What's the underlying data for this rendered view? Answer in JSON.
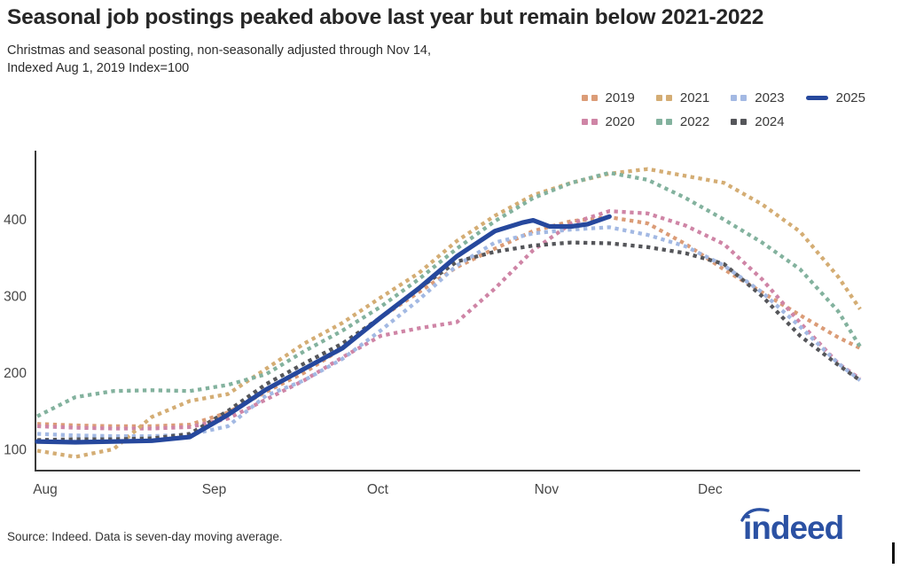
{
  "header": {
    "title": "Seasonal job postings peaked above last year but remain below 2021-2022",
    "subtitle_line1": "Christmas and seasonal posting, non-seasonally adjusted through Nov 14,",
    "subtitle_line2": "Indexed Aug 1, 2019 Index=100"
  },
  "footer": {
    "source": "Source: Indeed. Data is seven-day moving average.",
    "logo_text": "indeed",
    "logo_color": "#2b51a3"
  },
  "chart_data": {
    "type": "line",
    "title": "Seasonal job postings peaked above last year but remain below 2021-2022",
    "x_unit": "days_since_aug_1",
    "x_domain": [
      0,
      151
    ],
    "ylim": [
      72,
      490
    ],
    "yticks": [
      100,
      200,
      300,
      400
    ],
    "x_axis_months": [
      {
        "label": "Aug",
        "day": 0
      },
      {
        "label": "Sep",
        "day": 31
      },
      {
        "label": "Oct",
        "day": 61
      },
      {
        "label": "Nov",
        "day": 92
      },
      {
        "label": "Dec",
        "day": 122
      }
    ],
    "grid": false,
    "legend_position": "top-right",
    "axis_color": "#3a3a3a",
    "tick_label_color": "#474747",
    "series": [
      {
        "name": "2019",
        "color": "#db9c77",
        "style": "dotted",
        "x": [
          0,
          7,
          14,
          21,
          28,
          35,
          42,
          49,
          56,
          63,
          70,
          77,
          84,
          91,
          98,
          105,
          112,
          119,
          126,
          133,
          140,
          147,
          151
        ],
        "values": [
          133,
          131,
          130,
          130,
          132,
          148,
          175,
          200,
          232,
          272,
          305,
          338,
          362,
          385,
          398,
          403,
          395,
          368,
          335,
          305,
          275,
          246,
          232
        ]
      },
      {
        "name": "2020",
        "color": "#cf85a6",
        "style": "dotted",
        "x": [
          0,
          7,
          14,
          21,
          28,
          35,
          42,
          49,
          56,
          63,
          70,
          77,
          84,
          91,
          98,
          105,
          112,
          119,
          126,
          133,
          140,
          147,
          151
        ],
        "values": [
          130,
          128,
          127,
          127,
          129,
          140,
          165,
          190,
          220,
          248,
          258,
          266,
          310,
          360,
          395,
          411,
          408,
          392,
          368,
          322,
          265,
          212,
          192
        ]
      },
      {
        "name": "2021",
        "color": "#d4ad74",
        "style": "dotted",
        "x": [
          0,
          7,
          14,
          21,
          28,
          35,
          42,
          49,
          56,
          63,
          70,
          77,
          84,
          91,
          98,
          105,
          112,
          119,
          126,
          133,
          140,
          147,
          151
        ],
        "values": [
          98,
          90,
          100,
          142,
          163,
          172,
          205,
          238,
          265,
          298,
          330,
          372,
          405,
          432,
          448,
          460,
          466,
          457,
          448,
          420,
          384,
          325,
          283
        ]
      },
      {
        "name": "2022",
        "color": "#83b29e",
        "style": "dotted",
        "x": [
          0,
          7,
          14,
          21,
          28,
          35,
          42,
          49,
          56,
          63,
          70,
          77,
          84,
          91,
          98,
          105,
          112,
          119,
          126,
          133,
          140,
          147,
          151
        ],
        "values": [
          143,
          168,
          176,
          177,
          176,
          184,
          198,
          228,
          255,
          286,
          322,
          362,
          398,
          428,
          448,
          461,
          452,
          428,
          400,
          370,
          335,
          280,
          234
        ]
      },
      {
        "name": "2023",
        "color": "#a3b9e3",
        "style": "dotted",
        "x": [
          0,
          7,
          14,
          21,
          28,
          35,
          42,
          49,
          56,
          63,
          70,
          77,
          84,
          91,
          98,
          105,
          112,
          119,
          126,
          133,
          140,
          147,
          151
        ],
        "values": [
          120,
          118,
          117,
          117,
          119,
          130,
          170,
          190,
          218,
          255,
          295,
          340,
          370,
          382,
          387,
          390,
          380,
          365,
          340,
          305,
          260,
          212,
          190
        ]
      },
      {
        "name": "2024",
        "color": "#55565a",
        "style": "dotted",
        "x": [
          0,
          7,
          14,
          21,
          28,
          35,
          42,
          49,
          56,
          63,
          70,
          77,
          84,
          91,
          98,
          105,
          112,
          119,
          126,
          133,
          140,
          147,
          151
        ],
        "values": [
          112,
          113,
          113,
          114,
          120,
          150,
          185,
          212,
          238,
          272,
          310,
          345,
          358,
          366,
          370,
          369,
          364,
          356,
          342,
          300,
          248,
          210,
          190
        ]
      },
      {
        "name": "2025",
        "color": "#26489d",
        "style": "solid",
        "x": [
          0,
          7,
          14,
          21,
          28,
          35,
          42,
          49,
          56,
          63,
          70,
          77,
          84,
          89,
          91,
          94,
          98,
          101,
          105
        ],
        "values": [
          110,
          109,
          110,
          111,
          116,
          145,
          178,
          205,
          232,
          272,
          310,
          352,
          385,
          396,
          399,
          391,
          391,
          394,
          404
        ]
      }
    ]
  }
}
